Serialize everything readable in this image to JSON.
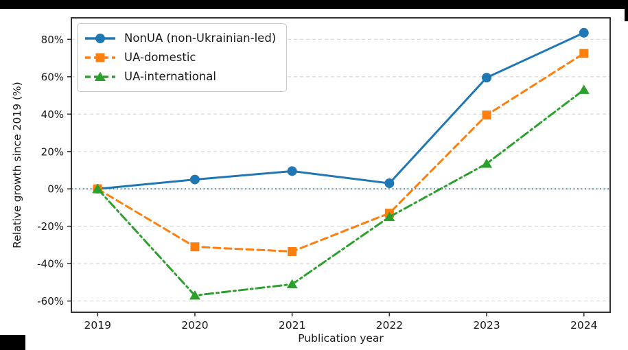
{
  "figure": {
    "background_color": "#ffffff",
    "frame_color": "#333333",
    "grid_color": "#dcdcdc",
    "tick_text_color": "#1a1a1a"
  },
  "chart_data": {
    "type": "line",
    "title": "",
    "xlabel": "Publication year",
    "ylabel": "Relative growth since 2019 (%)",
    "x": [
      2019,
      2020,
      2021,
      2022,
      2023,
      2024
    ],
    "xtick_labels": [
      "2019",
      "2020",
      "2021",
      "2022",
      "2023",
      "2024"
    ],
    "ytick_values": [
      80,
      60,
      40,
      20,
      0,
      -20,
      -40,
      -60
    ],
    "ytick_labels": [
      "80%",
      "60%",
      "40%",
      "20%",
      "0%",
      "-20%",
      "-40%",
      "-60%"
    ],
    "xlim": [
      2018.73,
      2024.27
    ],
    "ylim": [
      -66,
      91.5
    ],
    "grid": "horizontal-dashed",
    "legend_position": "upper-left",
    "zero_line": {
      "value": 0,
      "style": "dotted",
      "color": "#1f77b4"
    },
    "series": [
      {
        "name": "NonUA (non-Ukrainian-led)",
        "color": "#1f77b4",
        "line_style": "solid",
        "marker": "circle",
        "values": [
          0,
          5,
          9.5,
          3,
          59.5,
          83.5
        ]
      },
      {
        "name": "UA-domestic",
        "color": "#ff7f0e",
        "line_style": "dashed",
        "marker": "square",
        "values": [
          0,
          -31,
          -33.5,
          -13,
          39.5,
          72.5
        ]
      },
      {
        "name": "UA-international",
        "color": "#2ca02c",
        "line_style": "dashdot",
        "marker": "triangle",
        "values": [
          0,
          -57,
          -51,
          -15,
          13.5,
          53
        ]
      }
    ]
  }
}
